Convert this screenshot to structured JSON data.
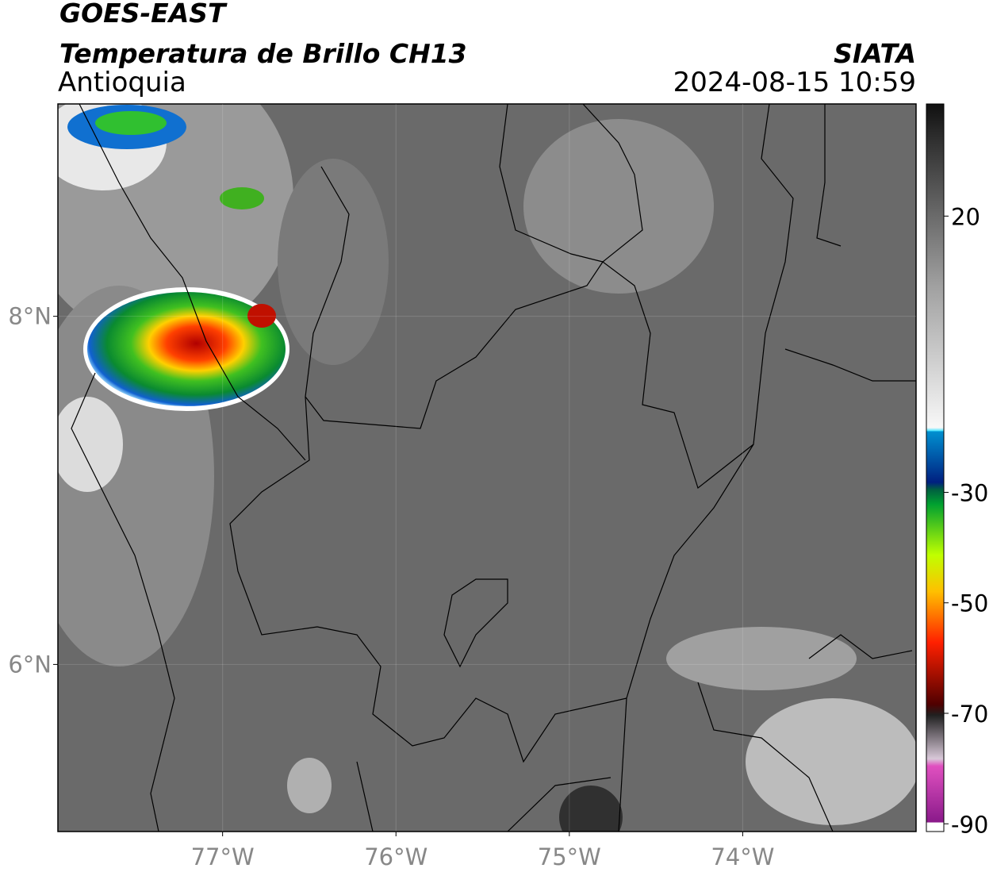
{
  "header": {
    "title": "GOES-EAST",
    "subtitle": "Temperatura de Brillo CH13",
    "region": "Antioquia",
    "source": "SIATA",
    "timestamp": "2024-08-15 10:59"
  },
  "map": {
    "xlim": [
      -77.95,
      -73.0
    ],
    "ylim": [
      5.04,
      9.22
    ],
    "xticks": [
      {
        "value": -77,
        "label": "77°W"
      },
      {
        "value": -76,
        "label": "76°W"
      },
      {
        "value": -75,
        "label": "75°W"
      },
      {
        "value": -74,
        "label": "74°W"
      }
    ],
    "yticks": [
      {
        "value": 8,
        "label": "8°N"
      },
      {
        "value": 6,
        "label": "6°N"
      }
    ]
  },
  "colorbar": {
    "lim": [
      -91.4,
      40.3
    ],
    "ticks": [
      20,
      -30,
      -50,
      -70,
      -90
    ]
  }
}
